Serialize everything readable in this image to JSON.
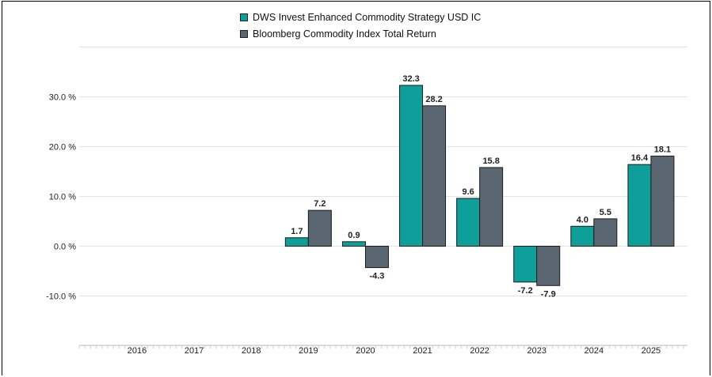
{
  "chart_data": {
    "type": "bar",
    "categories": [
      "2016",
      "2017",
      "2018",
      "2019",
      "2020",
      "2021",
      "2022",
      "2023",
      "2024",
      "2025"
    ],
    "series": [
      {
        "name": "DWS Invest Enhanced Commodity Strategy USD IC",
        "color": "#0e9f9b",
        "values": [
          null,
          null,
          null,
          1.7,
          0.9,
          32.3,
          9.6,
          -7.2,
          4.0,
          16.4
        ]
      },
      {
        "name": "Bloomberg Commodity Index Total Return",
        "color": "#5a6773",
        "values": [
          null,
          null,
          null,
          7.2,
          -4.3,
          28.2,
          15.8,
          -7.9,
          5.5,
          18.1
        ]
      }
    ],
    "yticks": [
      "30.0 %",
      "20.0 %",
      "10.0 %",
      "0.0 %",
      "-10.0 %"
    ],
    "ytick_values": [
      30,
      20,
      10,
      0,
      -10
    ],
    "ylim": [
      -20,
      40
    ],
    "grid": true,
    "legend_position": "top-center"
  }
}
